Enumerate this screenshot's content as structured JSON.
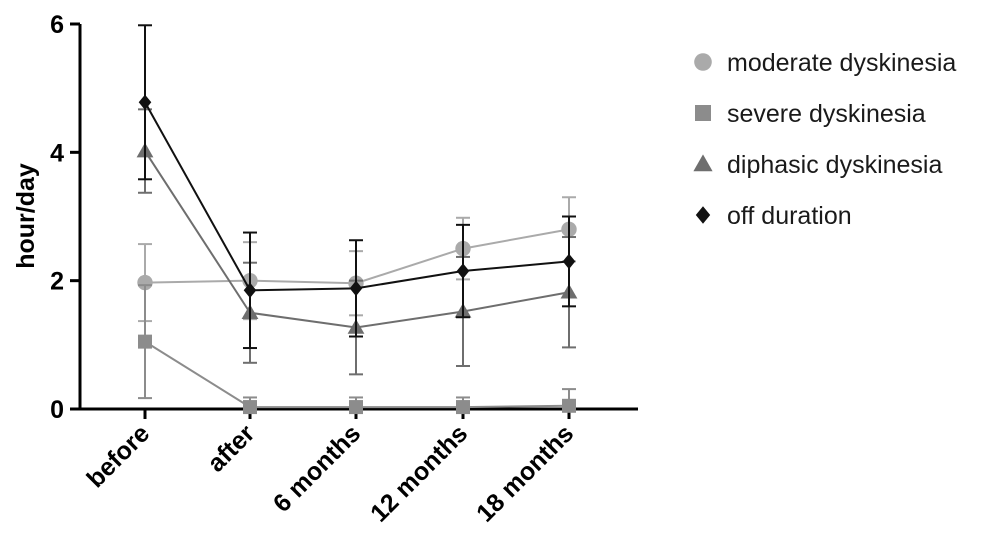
{
  "chart_data": {
    "type": "line",
    "title": "",
    "xlabel": "",
    "ylabel": "hour/day",
    "categories": [
      "before",
      "after",
      "6 months",
      "12 months",
      "18 months"
    ],
    "ylim": [
      0,
      6
    ],
    "yticks": [
      "0",
      "2",
      "4",
      "6"
    ],
    "grid": false,
    "legend_position": "right",
    "series": [
      {
        "name": "moderate dyskinesia",
        "marker": "circle",
        "color": "#aaaaaa",
        "values": [
          1.97,
          2.0,
          1.96,
          2.5,
          2.8
        ],
        "error": [
          0.6,
          0.6,
          0.5,
          0.48,
          0.5
        ]
      },
      {
        "name": "severe dyskinesia",
        "marker": "square",
        "color": "#8c8c8c",
        "values": [
          1.05,
          0.03,
          0.03,
          0.03,
          0.05
        ],
        "error": [
          0.88,
          0.15,
          0.15,
          0.15,
          0.26
        ]
      },
      {
        "name": "diphasic dyskinesia",
        "marker": "triangle",
        "color": "#6e6e6e",
        "values": [
          4.02,
          1.5,
          1.27,
          1.52,
          1.82
        ],
        "error": [
          0.65,
          0.78,
          0.73,
          0.85,
          0.86
        ]
      },
      {
        "name": "off duration",
        "marker": "diamond",
        "color": "#111111",
        "values": [
          4.78,
          1.85,
          1.88,
          2.15,
          2.3
        ],
        "error": [
          1.2,
          0.9,
          0.75,
          0.72,
          0.7
        ]
      }
    ]
  }
}
